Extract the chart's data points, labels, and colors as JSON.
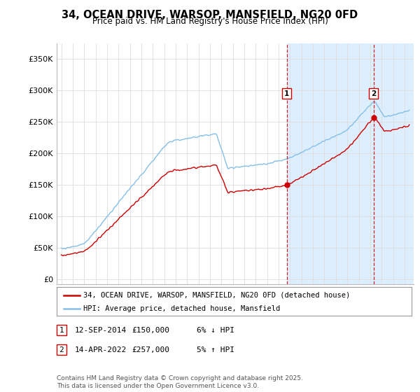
{
  "title": "34, OCEAN DRIVE, WARSOP, MANSFIELD, NG20 0FD",
  "subtitle": "Price paid vs. HM Land Registry's House Price Index (HPI)",
  "yticks": [
    0,
    50000,
    100000,
    150000,
    200000,
    250000,
    300000,
    350000
  ],
  "ytick_labels": [
    "£0",
    "£50K",
    "£100K",
    "£150K",
    "£200K",
    "£250K",
    "£300K",
    "£350K"
  ],
  "hpi_color": "#85bfe8",
  "price_color": "#cc0000",
  "dashed_color": "#cc0000",
  "shade_color": "#ddeeff",
  "marker1_x": 2014.71,
  "marker1_y": 150000,
  "marker2_x": 2022.29,
  "marker2_y": 257000,
  "legend_line1": "34, OCEAN DRIVE, WARSOP, MANSFIELD, NG20 0FD (detached house)",
  "legend_line2": "HPI: Average price, detached house, Mansfield",
  "footer": "Contains HM Land Registry data © Crown copyright and database right 2025.\nThis data is licensed under the Open Government Licence v3.0.",
  "background_color": "#ffffff",
  "grid_color": "#dddddd",
  "ylim_max": 375000,
  "ylim_min": -8000,
  "xlim_min": 1994.6,
  "xlim_max": 2025.8
}
